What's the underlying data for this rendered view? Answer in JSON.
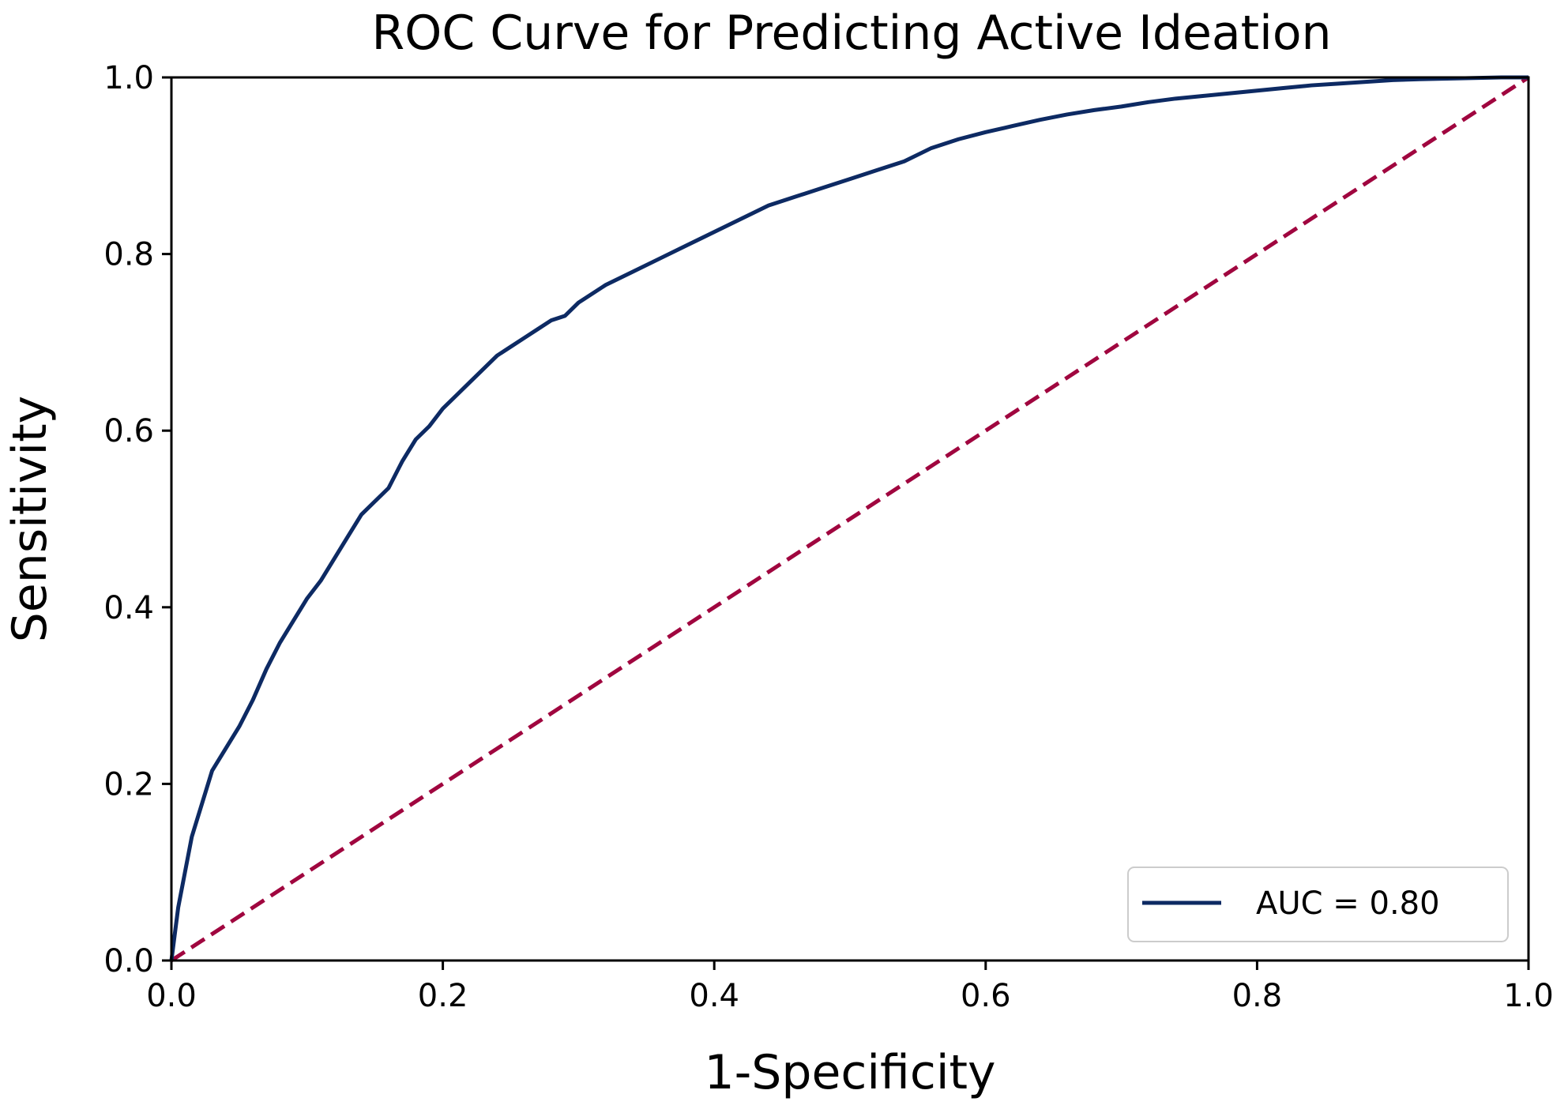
{
  "chart_data": {
    "type": "line",
    "title": "ROC Curve for Predicting Active Ideation",
    "xlabel": "1-Specificity",
    "ylabel": "Sensitivity",
    "xlim": [
      0.0,
      1.0
    ],
    "ylim": [
      0.0,
      1.0
    ],
    "xticks": [
      "0.0",
      "0.2",
      "0.4",
      "0.6",
      "0.8",
      "1.0"
    ],
    "yticks": [
      "0.0",
      "0.2",
      "0.4",
      "0.6",
      "0.8",
      "1.0"
    ],
    "grid": false,
    "legend_position": "bottom-right",
    "series": [
      {
        "name": "AUC = 0.80",
        "color": "#0d2a63",
        "style": "solid",
        "x": [
          0.0,
          0.005,
          0.01,
          0.015,
          0.02,
          0.025,
          0.03,
          0.04,
          0.05,
          0.06,
          0.07,
          0.08,
          0.09,
          0.1,
          0.11,
          0.12,
          0.13,
          0.14,
          0.15,
          0.16,
          0.17,
          0.18,
          0.19,
          0.2,
          0.21,
          0.22,
          0.23,
          0.24,
          0.25,
          0.26,
          0.27,
          0.28,
          0.29,
          0.3,
          0.32,
          0.34,
          0.36,
          0.38,
          0.4,
          0.42,
          0.44,
          0.46,
          0.48,
          0.5,
          0.52,
          0.54,
          0.56,
          0.58,
          0.6,
          0.62,
          0.64,
          0.66,
          0.68,
          0.7,
          0.72,
          0.74,
          0.76,
          0.78,
          0.8,
          0.82,
          0.84,
          0.86,
          0.88,
          0.9,
          0.92,
          0.95,
          0.98,
          1.0
        ],
        "y": [
          0.0,
          0.06,
          0.1,
          0.14,
          0.165,
          0.19,
          0.215,
          0.24,
          0.265,
          0.295,
          0.33,
          0.36,
          0.385,
          0.41,
          0.43,
          0.455,
          0.48,
          0.505,
          0.52,
          0.535,
          0.565,
          0.59,
          0.605,
          0.625,
          0.64,
          0.655,
          0.67,
          0.685,
          0.695,
          0.705,
          0.715,
          0.725,
          0.73,
          0.745,
          0.765,
          0.78,
          0.795,
          0.81,
          0.825,
          0.84,
          0.855,
          0.865,
          0.875,
          0.885,
          0.895,
          0.905,
          0.92,
          0.93,
          0.938,
          0.945,
          0.952,
          0.958,
          0.963,
          0.967,
          0.972,
          0.976,
          0.979,
          0.982,
          0.985,
          0.988,
          0.991,
          0.993,
          0.995,
          0.997,
          0.998,
          0.999,
          1.0,
          1.0
        ]
      },
      {
        "name": "",
        "color": "#a0063f",
        "style": "dashed",
        "x": [
          0.0,
          1.0
        ],
        "y": [
          0.0,
          1.0
        ]
      }
    ],
    "legend": {
      "entries": [
        "AUC = 0.80"
      ]
    }
  }
}
